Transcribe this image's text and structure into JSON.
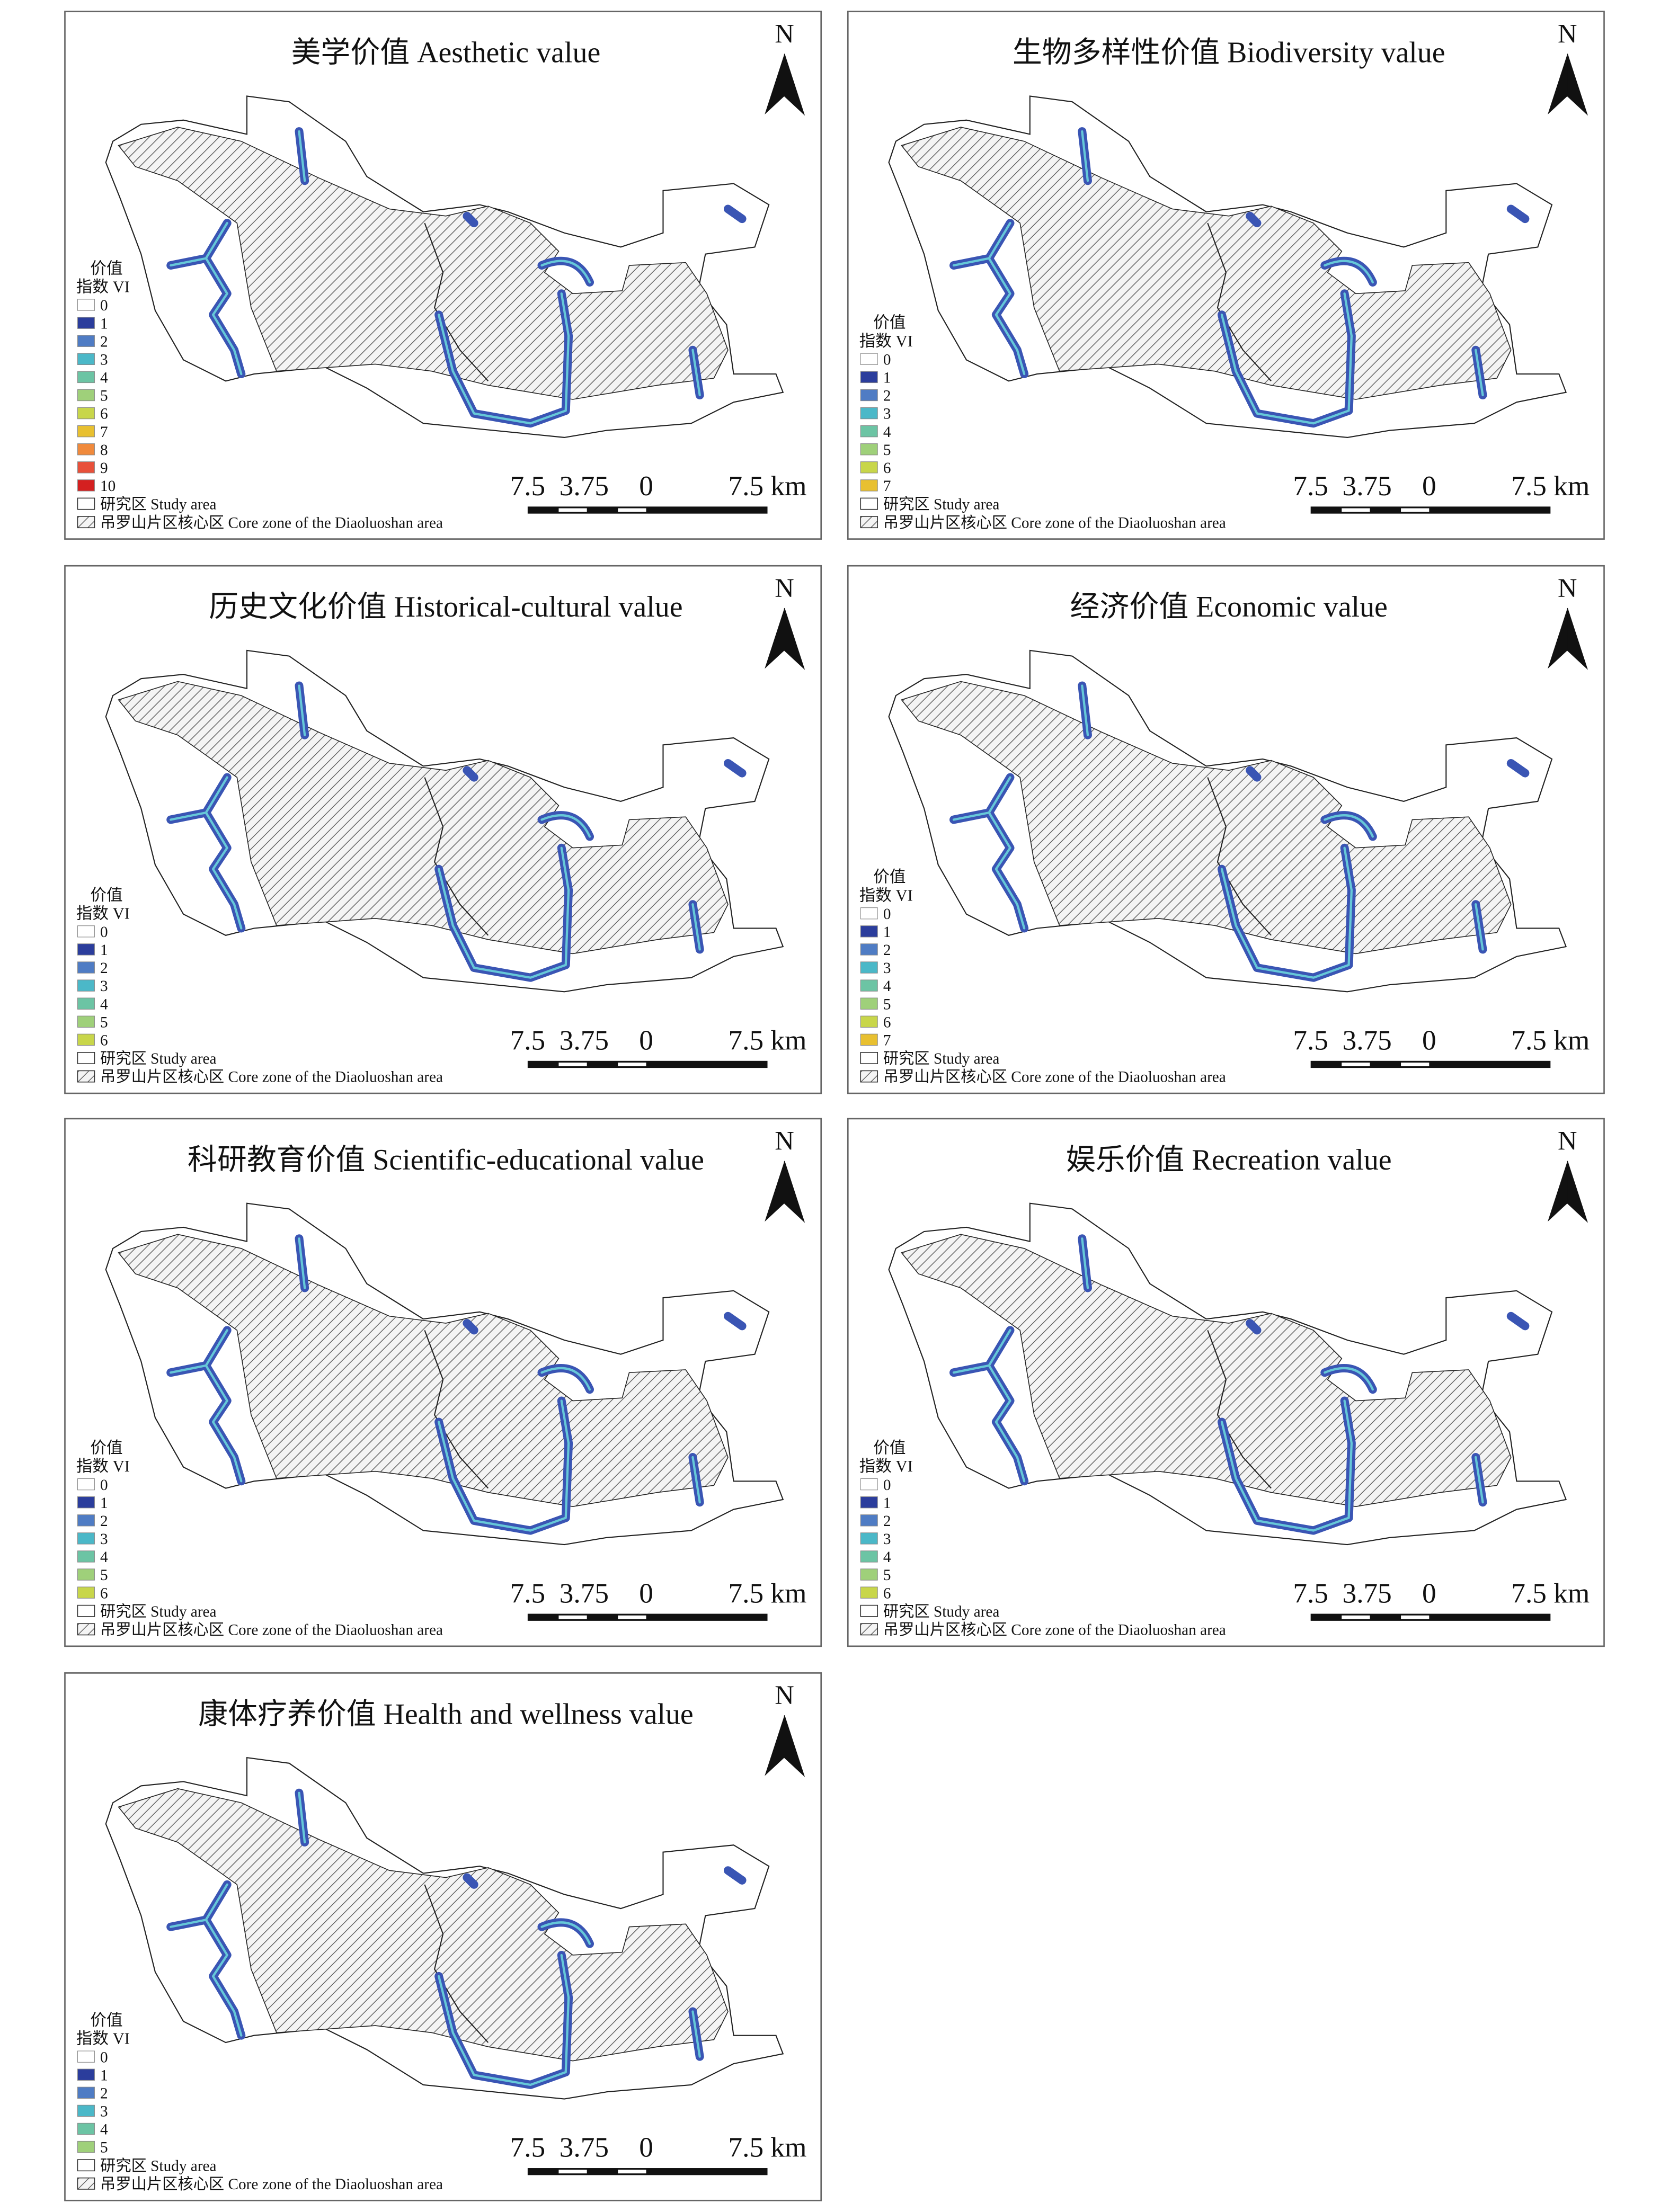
{
  "common": {
    "legend_title_1": "价值",
    "legend_title_2": "指数 VI",
    "study_area": "研究区 Study area",
    "core_zone": "吊罗山片区核心区 Core zone of the Diaoluoshan area",
    "north": "N",
    "scale": [
      "7.5",
      "3.75",
      "0",
      "7.5 km"
    ]
  },
  "panels": [
    {
      "title": "美学价值 Aesthetic value",
      "legend": [
        {
          "label": 0,
          "color": "#ffffff"
        },
        {
          "label": 1,
          "color": "#2b3d9c"
        },
        {
          "label": 2,
          "color": "#4f7cc4"
        },
        {
          "label": 3,
          "color": "#4bb8c8"
        },
        {
          "label": 4,
          "color": "#6cc4a4"
        },
        {
          "label": 5,
          "color": "#9fd07a"
        },
        {
          "label": 6,
          "color": "#c8d64a"
        },
        {
          "label": 7,
          "color": "#e8c030"
        },
        {
          "label": 8,
          "color": "#f08a3c"
        },
        {
          "label": 9,
          "color": "#e8503a"
        },
        {
          "label": 10,
          "color": "#d42020"
        }
      ]
    },
    {
      "title": "生物多样性价值 Biodiversity value",
      "legend": [
        {
          "label": 0,
          "color": "#ffffff"
        },
        {
          "label": 1,
          "color": "#2b3d9c"
        },
        {
          "label": 2,
          "color": "#4f7cc4"
        },
        {
          "label": 3,
          "color": "#4bb8c8"
        },
        {
          "label": 4,
          "color": "#6cc4a4"
        },
        {
          "label": 5,
          "color": "#9fd07a"
        },
        {
          "label": 6,
          "color": "#c8d64a"
        },
        {
          "label": 7,
          "color": "#e8c030"
        }
      ]
    },
    {
      "title": "历史文化价值 Historical-cultural value",
      "legend": [
        {
          "label": 0,
          "color": "#ffffff"
        },
        {
          "label": 1,
          "color": "#2b3d9c"
        },
        {
          "label": 2,
          "color": "#4f7cc4"
        },
        {
          "label": 3,
          "color": "#4bb8c8"
        },
        {
          "label": 4,
          "color": "#6cc4a4"
        },
        {
          "label": 5,
          "color": "#9fd07a"
        },
        {
          "label": 6,
          "color": "#c8d64a"
        }
      ]
    },
    {
      "title": "经济价值 Economic value",
      "legend": [
        {
          "label": 0,
          "color": "#ffffff"
        },
        {
          "label": 1,
          "color": "#2b3d9c"
        },
        {
          "label": 2,
          "color": "#4f7cc4"
        },
        {
          "label": 3,
          "color": "#4bb8c8"
        },
        {
          "label": 4,
          "color": "#6cc4a4"
        },
        {
          "label": 5,
          "color": "#9fd07a"
        },
        {
          "label": 6,
          "color": "#c8d64a"
        },
        {
          "label": 7,
          "color": "#e8c030"
        }
      ]
    },
    {
      "title": "科研教育价值 Scientific-educational value",
      "legend": [
        {
          "label": 0,
          "color": "#ffffff"
        },
        {
          "label": 1,
          "color": "#2b3d9c"
        },
        {
          "label": 2,
          "color": "#4f7cc4"
        },
        {
          "label": 3,
          "color": "#4bb8c8"
        },
        {
          "label": 4,
          "color": "#6cc4a4"
        },
        {
          "label": 5,
          "color": "#9fd07a"
        },
        {
          "label": 6,
          "color": "#c8d64a"
        }
      ]
    },
    {
      "title": "娱乐价值 Recreation value",
      "legend": [
        {
          "label": 0,
          "color": "#ffffff"
        },
        {
          "label": 1,
          "color": "#2b3d9c"
        },
        {
          "label": 2,
          "color": "#4f7cc4"
        },
        {
          "label": 3,
          "color": "#4bb8c8"
        },
        {
          "label": 4,
          "color": "#6cc4a4"
        },
        {
          "label": 5,
          "color": "#9fd07a"
        },
        {
          "label": 6,
          "color": "#c8d64a"
        }
      ]
    },
    {
      "title": "康体疗养价值 Health and wellness value",
      "legend": [
        {
          "label": 0,
          "color": "#ffffff"
        },
        {
          "label": 1,
          "color": "#2b3d9c"
        },
        {
          "label": 2,
          "color": "#4f7cc4"
        },
        {
          "label": 3,
          "color": "#4bb8c8"
        },
        {
          "label": 4,
          "color": "#6cc4a4"
        },
        {
          "label": 5,
          "color": "#9fd07a"
        }
      ]
    }
  ]
}
